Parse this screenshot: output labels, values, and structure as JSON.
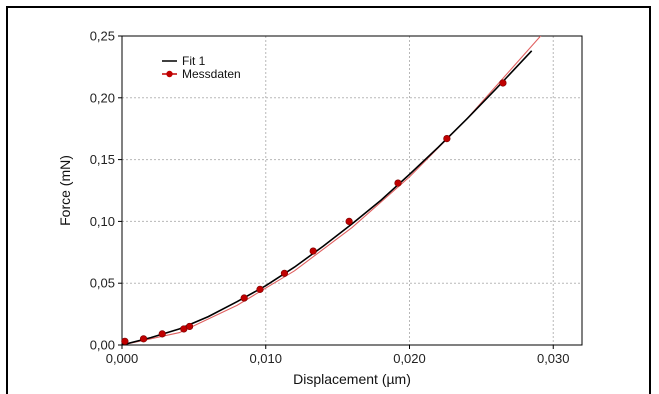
{
  "chart_data": {
    "type": "scatter",
    "xlabel": "Displacement (µm)",
    "ylabel": "Force (mN)",
    "xlim": [
      0,
      0.032
    ],
    "ylim": [
      0,
      0.25
    ],
    "x_ticks": [
      "0,000",
      "0,010",
      "0,020",
      "0,030"
    ],
    "x_tick_values": [
      0,
      0.01,
      0.02,
      0.03
    ],
    "y_ticks": [
      "0,00",
      "0,05",
      "0,10",
      "0,15",
      "0,20",
      "0,25"
    ],
    "y_tick_values": [
      0,
      0.05,
      0.1,
      0.15,
      0.2,
      0.25
    ],
    "grid": true,
    "legend_position": "top-left",
    "series": [
      {
        "name": "Fit 1",
        "kind": "line",
        "color": "#000000",
        "x": [
          0.0,
          0.002,
          0.004,
          0.006,
          0.008,
          0.01,
          0.012,
          0.014,
          0.016,
          0.018,
          0.02,
          0.022,
          0.024,
          0.026,
          0.0285
        ],
        "y": [
          0.0,
          0.006,
          0.013,
          0.023,
          0.035,
          0.048,
          0.063,
          0.08,
          0.098,
          0.117,
          0.138,
          0.16,
          0.183,
          0.207,
          0.238
        ]
      },
      {
        "name": "Messdaten",
        "kind": "scatter",
        "color": "#c00000",
        "x": [
          0.0002,
          0.0015,
          0.0028,
          0.0043,
          0.0047,
          0.0085,
          0.0096,
          0.0113,
          0.0133,
          0.0158,
          0.0192,
          0.0226,
          0.0265
        ],
        "y": [
          0.003,
          0.005,
          0.009,
          0.013,
          0.015,
          0.038,
          0.045,
          0.058,
          0.076,
          0.1,
          0.131,
          0.167,
          0.212
        ]
      },
      {
        "kind": "line",
        "color": "#e06060",
        "x": [
          0.0,
          0.004,
          0.008,
          0.012,
          0.016,
          0.02,
          0.024,
          0.0295
        ],
        "y": [
          0.0,
          0.01,
          0.032,
          0.06,
          0.095,
          0.136,
          0.183,
          0.255
        ]
      }
    ]
  }
}
